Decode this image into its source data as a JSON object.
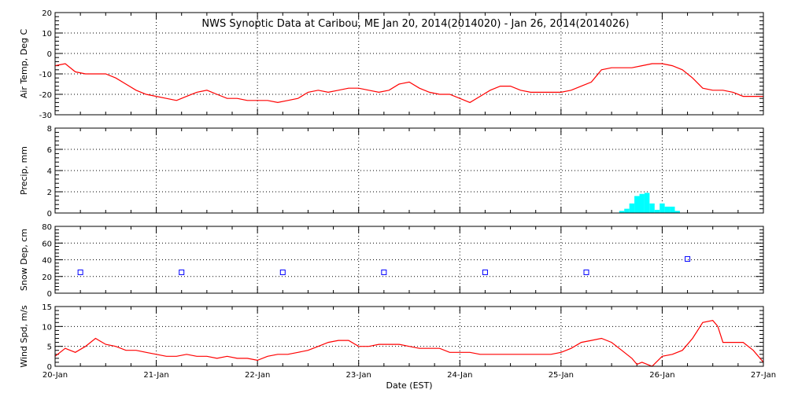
{
  "chart_data": {
    "type": "line",
    "title": "NWS Synoptic Data at Caribou, ME   Jan 20, 2014(2014020) - Jan 26, 2014(2014026)",
    "xlabel": "Date (EST)",
    "x_tick_labels": [
      "20-Jan",
      "21-Jan",
      "22-Jan",
      "23-Jan",
      "24-Jan",
      "25-Jan",
      "26-Jan",
      "27-Jan"
    ],
    "xlim_days": [
      0,
      7
    ],
    "grid": true,
    "colors": {
      "temp": "#ff0000",
      "precip": "#00ffff",
      "snow": "#0000ff",
      "wind": "#ff0000",
      "grid": "#000000"
    },
    "panels": [
      {
        "id": "temp",
        "ylabel": "Air Temp, Deg C",
        "ylim": [
          -30,
          20
        ],
        "yticks": [
          -30,
          -20,
          -10,
          0,
          10,
          20
        ],
        "series": [
          {
            "type": "line",
            "x": [
              0,
              0.1,
              0.2,
              0.3,
              0.4,
              0.5,
              0.6,
              0.7,
              0.8,
              0.9,
              1.0,
              1.1,
              1.2,
              1.3,
              1.4,
              1.5,
              1.6,
              1.7,
              1.8,
              1.9,
              2.0,
              2.1,
              2.2,
              2.3,
              2.4,
              2.5,
              2.6,
              2.7,
              2.8,
              2.9,
              3.0,
              3.1,
              3.2,
              3.3,
              3.4,
              3.5,
              3.6,
              3.7,
              3.8,
              3.9,
              4.0,
              4.1,
              4.2,
              4.3,
              4.4,
              4.5,
              4.6,
              4.7,
              4.8,
              4.9,
              5.0,
              5.1,
              5.2,
              5.3,
              5.4,
              5.5,
              5.6,
              5.7,
              5.8,
              5.9,
              6.0,
              6.1,
              6.2,
              6.3,
              6.4,
              6.5,
              6.6,
              6.7,
              6.8,
              6.9,
              7.0
            ],
            "y": [
              -6,
              -5,
              -9,
              -10,
              -10,
              -10,
              -12,
              -15,
              -18,
              -20,
              -21,
              -22,
              -23,
              -21,
              -19,
              -18,
              -20,
              -22,
              -22,
              -23,
              -23,
              -23,
              -24,
              -23,
              -22,
              -19,
              -18,
              -19,
              -18,
              -17,
              -17,
              -18,
              -19,
              -18,
              -15,
              -14,
              -17,
              -19,
              -20,
              -20,
              -22,
              -24,
              -21,
              -18,
              -16,
              -16,
              -18,
              -19,
              -19,
              -19,
              -19,
              -18,
              -16,
              -14,
              -8,
              -7,
              -7,
              -7,
              -6,
              -5,
              -5,
              -6,
              -8,
              -12,
              -17,
              -18,
              -18,
              -19,
              -21,
              -21,
              -21
            ]
          }
        ]
      },
      {
        "id": "precip",
        "ylabel": "Precip, mm",
        "ylim": [
          0,
          8
        ],
        "yticks": [
          0,
          2,
          4,
          6,
          8
        ],
        "series": [
          {
            "type": "bar",
            "x": [
              5.6,
              5.65,
              5.7,
              5.75,
              5.8,
              5.85,
              5.9,
              5.95,
              6.0,
              6.05,
              6.1,
              6.15
            ],
            "y": [
              0.2,
              0.4,
              0.9,
              1.6,
              1.8,
              1.9,
              0.9,
              0.3,
              0.9,
              0.6,
              0.6,
              0.2
            ]
          }
        ]
      },
      {
        "id": "snow",
        "ylabel": "Snow Dep, cm",
        "ylim": [
          0,
          80
        ],
        "yticks": [
          0,
          20,
          40,
          60,
          80
        ],
        "series": [
          {
            "type": "scatter",
            "x": [
              0.25,
              1.25,
              2.25,
              3.25,
              4.25,
              5.25,
              6.25
            ],
            "y": [
              25,
              25,
              25,
              25,
              25,
              25,
              41
            ]
          }
        ]
      },
      {
        "id": "wind",
        "ylabel": "Wind Spd, m/s",
        "ylim": [
          0,
          15
        ],
        "yticks": [
          0,
          5,
          10,
          15
        ],
        "series": [
          {
            "type": "line",
            "x": [
              0,
              0.1,
              0.2,
              0.3,
              0.4,
              0.5,
              0.6,
              0.7,
              0.8,
              0.9,
              1.0,
              1.1,
              1.2,
              1.3,
              1.4,
              1.5,
              1.6,
              1.7,
              1.8,
              1.9,
              2.0,
              2.1,
              2.2,
              2.3,
              2.4,
              2.5,
              2.6,
              2.7,
              2.8,
              2.9,
              3.0,
              3.1,
              3.2,
              3.3,
              3.4,
              3.5,
              3.6,
              3.7,
              3.8,
              3.9,
              4.0,
              4.1,
              4.2,
              4.3,
              4.4,
              4.5,
              4.6,
              4.7,
              4.8,
              4.9,
              5.0,
              5.1,
              5.2,
              5.3,
              5.4,
              5.5,
              5.6,
              5.7,
              5.75,
              5.8,
              5.9,
              6.0,
              6.1,
              6.2,
              6.3,
              6.4,
              6.5,
              6.55,
              6.6,
              6.7,
              6.8,
              6.9,
              7.0
            ],
            "y": [
              2.5,
              4.5,
              3.5,
              5,
              7,
              5.5,
              5,
              4,
              4,
              3.5,
              3,
              2.5,
              2.5,
              3,
              2.5,
              2.5,
              2,
              2.5,
              2,
              2,
              1.5,
              2.5,
              3,
              3,
              3.5,
              4,
              5,
              6,
              6.5,
              6.5,
              5,
              5,
              5.5,
              5.5,
              5.5,
              5,
              4.5,
              4.5,
              4.5,
              3.5,
              3.5,
              3.5,
              3,
              3,
              3,
              3,
              3,
              3,
              3,
              3,
              3.5,
              4.5,
              6,
              6.5,
              7,
              6,
              4,
              2,
              0.5,
              1,
              0,
              2.5,
              3,
              4,
              7,
              11,
              11.5,
              10,
              6,
              6,
              6,
              4,
              1
            ]
          }
        ]
      }
    ]
  }
}
